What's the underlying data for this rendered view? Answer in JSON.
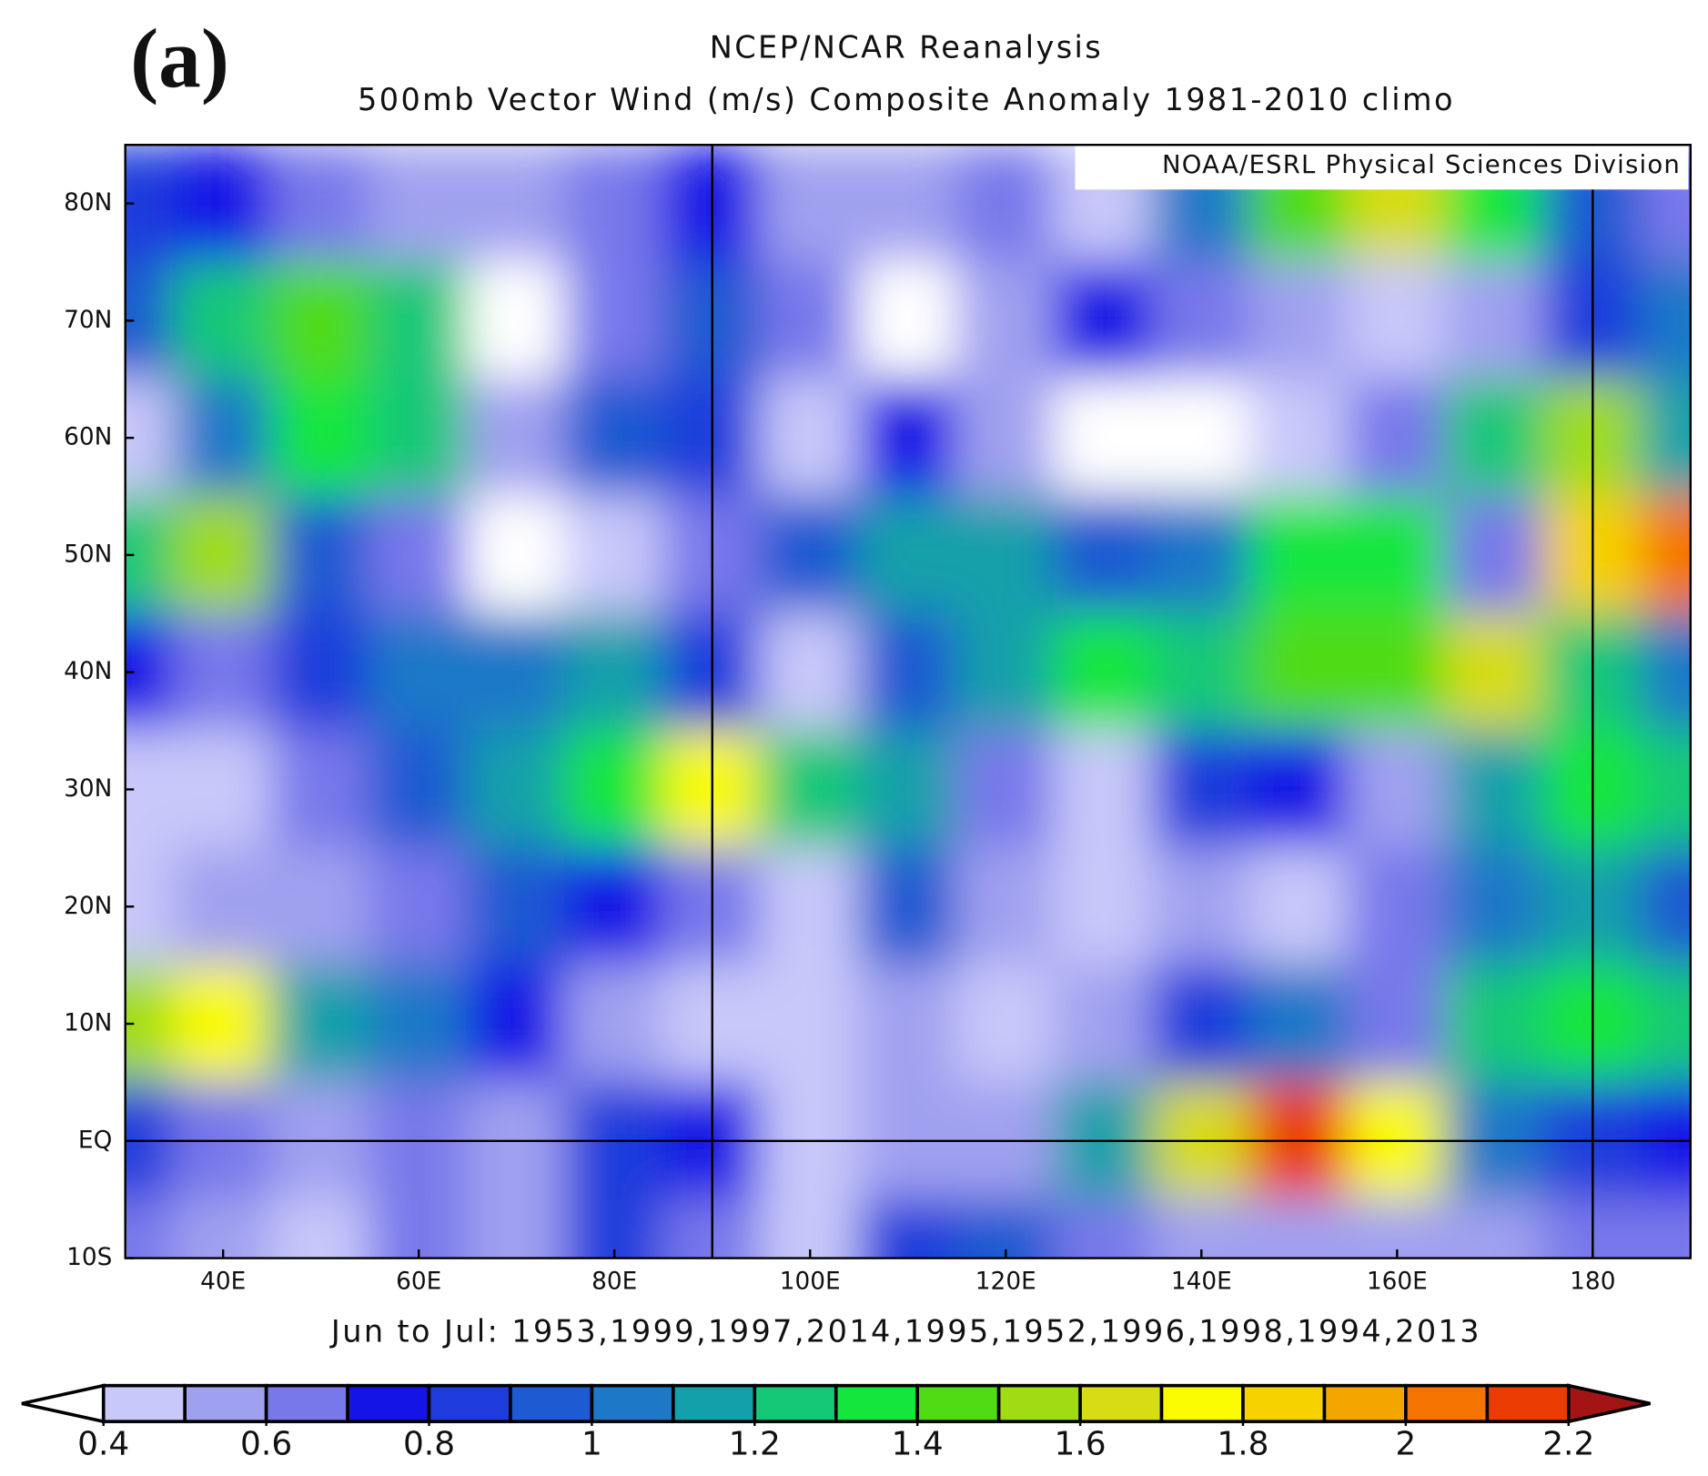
{
  "panel_label": "(a)",
  "title": "NCEP/NCAR Reanalysis",
  "subtitle": "500mb Vector Wind (m/s) Composite Anomaly 1981-2010 climo",
  "credit": "NOAA/ESRL Physical Sciences Division",
  "footer": "Jun to Jul: 1953,1999,1997,2014,1995,1952,1996,1998,1994,2013",
  "map": {
    "xlim": [
      30,
      190
    ],
    "ylim": [
      -10,
      85
    ],
    "xticks": [
      {
        "value": 40,
        "label": "40E"
      },
      {
        "value": 60,
        "label": "60E"
      },
      {
        "value": 80,
        "label": "80E"
      },
      {
        "value": 100,
        "label": "100E"
      },
      {
        "value": 120,
        "label": "120E"
      },
      {
        "value": 140,
        "label": "140E"
      },
      {
        "value": 160,
        "label": "160E"
      },
      {
        "value": 180,
        "label": "180"
      }
    ],
    "yticks": [
      {
        "value": 80,
        "label": "80N"
      },
      {
        "value": 70,
        "label": "70N"
      },
      {
        "value": 60,
        "label": "60N"
      },
      {
        "value": 50,
        "label": "50N"
      },
      {
        "value": 40,
        "label": "40N"
      },
      {
        "value": 30,
        "label": "30N"
      },
      {
        "value": 20,
        "label": "20N"
      },
      {
        "value": 10,
        "label": "10N"
      },
      {
        "value": 0,
        "label": "EQ"
      },
      {
        "value": -10,
        "label": "10S"
      }
    ],
    "grid_lons": [
      90,
      180
    ],
    "grid_lats": [
      0
    ],
    "lons": [
      30,
      40,
      50,
      60,
      70,
      80,
      90,
      100,
      110,
      120,
      130,
      140,
      150,
      160,
      170,
      180,
      190
    ],
    "lats": [
      80,
      70,
      60,
      50,
      40,
      30,
      20,
      10,
      0,
      -10
    ],
    "values": [
      [
        0.8,
        0.7,
        0.6,
        0.5,
        0.5,
        0.6,
        0.7,
        0.5,
        0.5,
        0.6,
        0.4,
        1.0,
        1.4,
        1.6,
        1.3,
        0.9,
        0.6
      ],
      [
        0.9,
        1.2,
        1.4,
        1.2,
        0.3,
        0.6,
        0.9,
        0.6,
        0.3,
        0.5,
        0.7,
        0.6,
        0.5,
        0.4,
        0.5,
        0.8,
        1.0
      ],
      [
        0.4,
        1.0,
        1.3,
        1.2,
        0.5,
        0.9,
        0.8,
        0.4,
        0.7,
        0.5,
        0.3,
        0.3,
        0.4,
        0.6,
        1.2,
        1.5,
        1.1
      ],
      [
        1.2,
        1.5,
        0.9,
        0.6,
        0.3,
        0.4,
        0.6,
        0.9,
        1.1,
        1.1,
        0.9,
        1.0,
        1.3,
        1.3,
        0.6,
        1.8,
        2.0
      ],
      [
        0.7,
        0.6,
        0.8,
        1.0,
        1.0,
        1.1,
        0.8,
        0.4,
        0.9,
        1.1,
        1.3,
        1.2,
        1.4,
        1.4,
        1.6,
        1.2,
        1.0
      ],
      [
        0.4,
        0.4,
        0.6,
        0.9,
        1.1,
        1.3,
        1.7,
        1.2,
        1.1,
        0.6,
        0.4,
        0.8,
        0.7,
        0.5,
        1.1,
        1.3,
        1.2
      ],
      [
        0.4,
        0.5,
        0.5,
        0.6,
        0.9,
        0.7,
        0.6,
        0.4,
        0.9,
        0.5,
        0.4,
        0.5,
        0.4,
        0.6,
        1.0,
        1.1,
        0.9
      ],
      [
        1.5,
        1.7,
        1.1,
        1.0,
        0.7,
        0.5,
        0.4,
        0.4,
        0.5,
        0.4,
        0.5,
        0.8,
        1.0,
        0.6,
        1.2,
        1.3,
        1.2
      ],
      [
        0.8,
        0.6,
        0.5,
        0.6,
        0.5,
        0.8,
        0.7,
        0.4,
        0.5,
        0.5,
        1.1,
        1.6,
        2.1,
        1.7,
        1.0,
        0.8,
        0.7
      ],
      [
        0.6,
        0.5,
        0.4,
        0.6,
        0.5,
        0.8,
        0.6,
        0.4,
        0.8,
        0.9,
        0.6,
        0.5,
        0.5,
        0.5,
        0.5,
        0.6,
        0.6
      ]
    ]
  },
  "colorbar": {
    "levels": [
      0.4,
      0.5,
      0.6,
      0.7,
      0.8,
      0.9,
      1.0,
      1.1,
      1.2,
      1.3,
      1.4,
      1.5,
      1.6,
      1.7,
      1.8,
      1.9,
      2.0,
      2.1,
      2.2
    ],
    "colors": [
      "#c8c8fa",
      "#a0a0f0",
      "#7878eb",
      "#1414e6",
      "#1e3cdc",
      "#1e5ad2",
      "#1e78c8",
      "#14a0aa",
      "#14c878",
      "#14e63c",
      "#50dc14",
      "#a0dc14",
      "#d7dc14",
      "#fafa00",
      "#f5d200",
      "#f5a500",
      "#f57300",
      "#eb3c00"
    ],
    "under_color": "#ffffff",
    "over_color": "#a51414",
    "ticks": [
      0.4,
      0.6,
      0.8,
      1,
      1.2,
      1.4,
      1.6,
      1.8,
      2,
      2.2
    ]
  }
}
